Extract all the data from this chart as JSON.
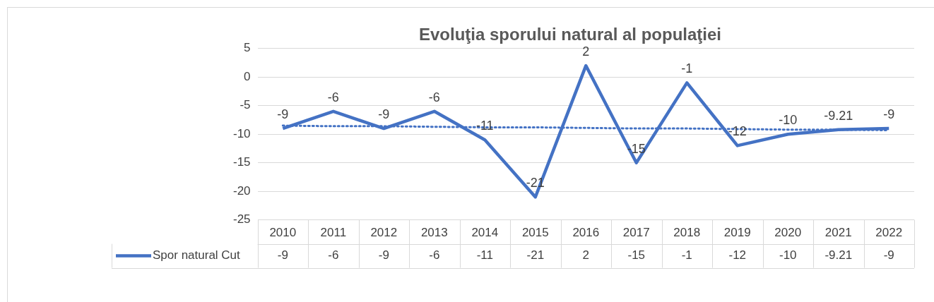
{
  "chart_data": {
    "type": "line",
    "title": "Evoluţia sporului natural al populaţiei",
    "categories": [
      "2010",
      "2011",
      "2012",
      "2013",
      "2014",
      "2015",
      "2016",
      "2017",
      "2018",
      "2019",
      "2020",
      "2021",
      "2022"
    ],
    "series": [
      {
        "name": "Spor natural Cut",
        "color": "#4472c4",
        "values": [
          -9,
          -6,
          -9,
          -6,
          -11,
          -21,
          2,
          -15,
          -1,
          -12,
          -10,
          -9.21,
          -9
        ],
        "value_labels": [
          "-9",
          "-6",
          "-9",
          "-6",
          "-11",
          "-21",
          "2",
          "-15",
          "-1",
          "-12",
          "-10",
          "-9.21",
          "-9"
        ]
      },
      {
        "type": "line",
        "values": [
          -8.5,
          -8.6,
          -8.6,
          -8.7,
          -8.8,
          -8.8,
          -8.9,
          -9.0,
          -9.0,
          -9.1,
          -9.2,
          -9.2,
          -9.3
        ],
        "color": "#4472c4",
        "line_style": "dotted"
      }
    ],
    "ylim": [
      -25,
      5
    ],
    "yticks": [
      -25,
      -20,
      -15,
      -10,
      -5,
      0,
      5
    ],
    "grid": "y",
    "legend": "bottom",
    "marker": "none",
    "line_style": "solid"
  }
}
